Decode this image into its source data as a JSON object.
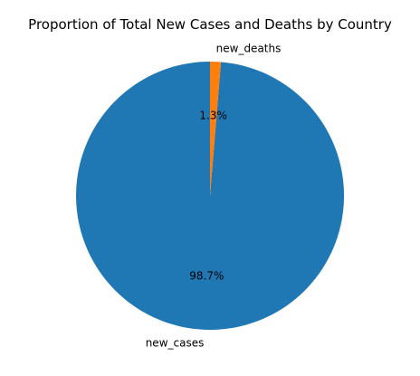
{
  "chart_data": {
    "type": "pie",
    "title": "Proportion of Total New Cases and Deaths by Country",
    "slices": [
      {
        "label": "new_cases",
        "percent": 98.7,
        "percent_label": "98.7%",
        "color": "#1f77b4"
      },
      {
        "label": "new_deaths",
        "percent": 1.3,
        "percent_label": "1.3%",
        "color": "#ff7f0e"
      }
    ],
    "start_angle_deg": 90,
    "direction": "counterclockwise",
    "legend": "none",
    "grid": false
  }
}
